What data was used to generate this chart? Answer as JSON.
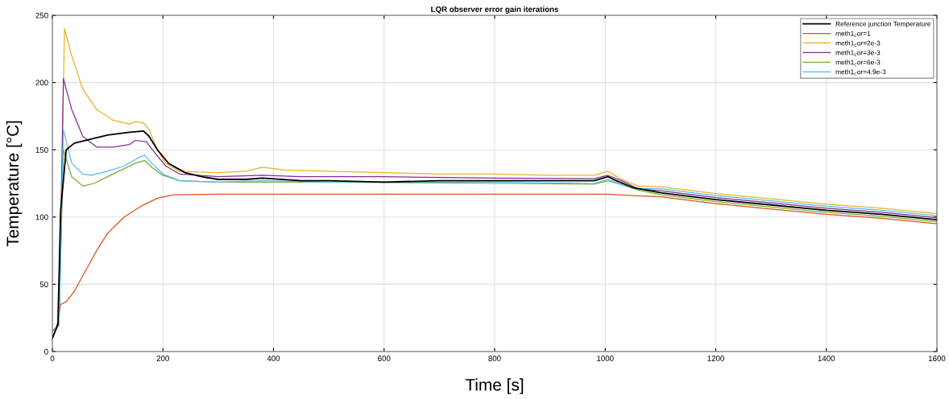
{
  "chart_data": {
    "type": "line",
    "title": "LQR observer error gain iterations",
    "xlabel": "Time [s]",
    "ylabel": "Temperature [°C]",
    "xlim": [
      0,
      1600
    ],
    "xticks": [
      0,
      200,
      400,
      600,
      800,
      1000,
      1200,
      1400,
      1600
    ],
    "ylim": [
      0,
      250
    ],
    "yticks": [
      0,
      50,
      100,
      150,
      200,
      250
    ],
    "grid": true,
    "legend": "top right",
    "series": [
      {
        "name": "Reference junction Temperature",
        "color": "#000000",
        "x": [
          0,
          10,
          15,
          25,
          40,
          70,
          100,
          140,
          165,
          175,
          190,
          210,
          240,
          270,
          300,
          350,
          380,
          450,
          500,
          600,
          700,
          800,
          900,
          980,
          1005,
          1020,
          1050,
          1100,
          1200,
          1300,
          1400,
          1500,
          1600
        ],
        "values": [
          10,
          20,
          105,
          150,
          155,
          158,
          161,
          163,
          164,
          160,
          150,
          140,
          133,
          130,
          128,
          128,
          129,
          127,
          127,
          126,
          127,
          127,
          127,
          127,
          130,
          127,
          122,
          118,
          113,
          109,
          105,
          102,
          98
        ]
      },
      {
        "name": "meth1$_{c}$or=1",
        "color": "#d95319",
        "x": [
          0,
          10,
          15,
          25,
          40,
          60,
          80,
          100,
          130,
          160,
          190,
          220,
          300,
          500,
          800,
          1000,
          1050,
          1100,
          1200,
          1300,
          1400,
          1500,
          1600
        ],
        "values": [
          10,
          22,
          35,
          37,
          45,
          60,
          75,
          88,
          100,
          108,
          114,
          116.5,
          117,
          117,
          117,
          117,
          116,
          115,
          110,
          106,
          102,
          99,
          95
        ]
      },
      {
        "name": "meth1$_{c}$or=2e-3",
        "color": "#edb120",
        "x": [
          0,
          12,
          22,
          35,
          55,
          80,
          110,
          140,
          150,
          165,
          175,
          190,
          205,
          230,
          300,
          350,
          380,
          420,
          500,
          600,
          700,
          800,
          900,
          980,
          1005,
          1030,
          1060,
          1100,
          1200,
          1300,
          1400,
          1500,
          1600
        ],
        "values": [
          15,
          20,
          240,
          220,
          195,
          180,
          172,
          169,
          171,
          170,
          165,
          150,
          140,
          134,
          133,
          134,
          137,
          135,
          134,
          133,
          132,
          132,
          131,
          131,
          134,
          128,
          123,
          122.5,
          117.5,
          113.5,
          109.5,
          106.5,
          102.5
        ]
      },
      {
        "name": "meth1$_{c}$or=3e-3",
        "color": "#7e2f8e",
        "x": [
          0,
          12,
          20,
          35,
          55,
          80,
          110,
          140,
          150,
          170,
          185,
          205,
          230,
          300,
          380,
          450,
          600,
          800,
          980,
          1005,
          1030,
          1060,
          1100,
          1200,
          1300,
          1400,
          1500,
          1600
        ],
        "values": [
          15,
          20,
          203,
          180,
          160,
          152,
          152,
          154,
          157,
          156,
          148,
          138,
          132,
          130,
          131,
          130,
          130,
          129,
          128.5,
          131,
          127,
          121,
          119.5,
          114.5,
          110.5,
          106.5,
          103.5,
          99.5
        ]
      },
      {
        "name": "meth1$_{c}$or=6e-3",
        "color": "#77ac30",
        "x": [
          0,
          12,
          20,
          35,
          55,
          75,
          100,
          130,
          150,
          167,
          180,
          200,
          230,
          300,
          500,
          800,
          980,
          1005,
          1030,
          1060,
          1100,
          1200,
          1300,
          1400,
          1500,
          1600
        ],
        "values": [
          15,
          20,
          150,
          130,
          123,
          125,
          130,
          136,
          140,
          142,
          137,
          131,
          127,
          126,
          126,
          125,
          124.5,
          127,
          124,
          120,
          116.5,
          111.5,
          107.5,
          103.5,
          100.5,
          96.5
        ]
      },
      {
        "name": "meth1$_{c}$or=4.9e-3",
        "color": "#4dbeee",
        "x": [
          0,
          12,
          20,
          35,
          55,
          70,
          100,
          130,
          160,
          167,
          180,
          200,
          230,
          300,
          380,
          500,
          800,
          980,
          1005,
          1030,
          1060,
          1100,
          1200,
          1300,
          1400,
          1500,
          1600
        ],
        "values": [
          15,
          20,
          165,
          140,
          132,
          131,
          134,
          138,
          145,
          146,
          140,
          132,
          127,
          126,
          127,
          126,
          126,
          125,
          128,
          124,
          121,
          121,
          116,
          112,
          108,
          105,
          101
        ]
      }
    ]
  }
}
